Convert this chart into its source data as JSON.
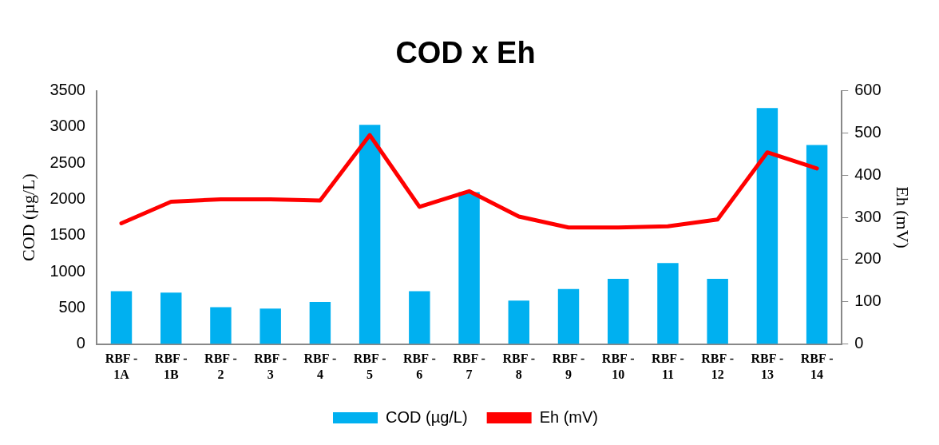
{
  "chart_data": {
    "type": "bar",
    "title": "COD x Eh",
    "categories": [
      "RBF - 1A",
      "RBF - 1B",
      "RBF - 2",
      "RBF - 3",
      "RBF - 4",
      "RBF - 5",
      "RBF - 6",
      "RBF - 7",
      "RBF - 8",
      "RBF - 9",
      "RBF - 10",
      "RBF - 11",
      "RBF - 12",
      "RBF - 13",
      "RBF - 14"
    ],
    "series": [
      {
        "name": "COD (µg/L)",
        "color": "#00b0f0",
        "values": [
          730,
          710,
          510,
          490,
          580,
          3030,
          730,
          2100,
          600,
          760,
          900,
          1120,
          900,
          3260,
          2750
        ]
      },
      {
        "name": "Eh (mV)",
        "type": "line",
        "axis": "y2",
        "color": "#ff0000",
        "values": [
          286,
          337,
          343,
          343,
          340,
          495,
          325,
          362,
          302,
          276,
          276,
          279,
          295,
          454,
          416
        ]
      }
    ],
    "ylabel": "COD (µg/L)",
    "y2label": "Eh (mV)",
    "ylim": [
      0,
      3500
    ],
    "yticks": [
      0,
      500,
      1000,
      1500,
      2000,
      2500,
      3000,
      3500
    ],
    "y2lim": [
      0,
      600
    ],
    "y2ticks": [
      0,
      100,
      200,
      300,
      400,
      500,
      600
    ],
    "grid": false,
    "legend": "bottom",
    "marker": "none"
  }
}
